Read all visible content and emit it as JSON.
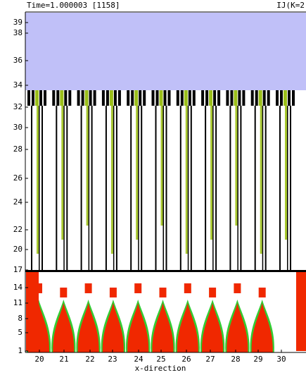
{
  "header": {
    "time": "Time=1.000003 [1158]",
    "view": "IJ(K=2"
  },
  "axis": {
    "y_labels": [
      "39",
      "38",
      "36",
      "34",
      "32",
      "30",
      "28",
      "26",
      "24",
      "22",
      "20",
      "17",
      "14",
      "11",
      "8",
      "5",
      "1"
    ],
    "x_labels": [
      "20",
      "21",
      "22",
      "23",
      "24",
      "25",
      "26",
      "27",
      "28",
      "29",
      "30"
    ],
    "x_title": "x-direction"
  }
}
